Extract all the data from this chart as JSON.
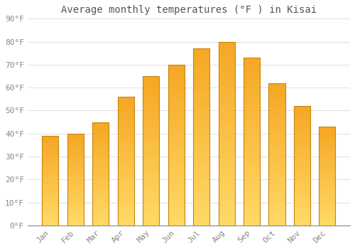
{
  "title": "Average monthly temperatures (°F ) in Kisai",
  "months": [
    "Jan",
    "Feb",
    "Mar",
    "Apr",
    "May",
    "Jun",
    "Jul",
    "Aug",
    "Sep",
    "Oct",
    "Nov",
    "Dec"
  ],
  "values": [
    39,
    40,
    45,
    56,
    65,
    70,
    77,
    80,
    73,
    62,
    52,
    43
  ],
  "bar_color_bottom": "#FFD966",
  "bar_color_top": "#F5A623",
  "bar_edge_color": "#C8840A",
  "ylim": [
    0,
    90
  ],
  "yticks": [
    0,
    10,
    20,
    30,
    40,
    50,
    60,
    70,
    80,
    90
  ],
  "ytick_labels": [
    "0°F",
    "10°F",
    "20°F",
    "30°F",
    "40°F",
    "50°F",
    "60°F",
    "70°F",
    "80°F",
    "90°F"
  ],
  "background_color": "#ffffff",
  "grid_color": "#e0e0e0",
  "title_fontsize": 10,
  "tick_fontsize": 8,
  "tick_color": "#888888",
  "bar_width": 0.65,
  "n_gradient_segments": 60
}
